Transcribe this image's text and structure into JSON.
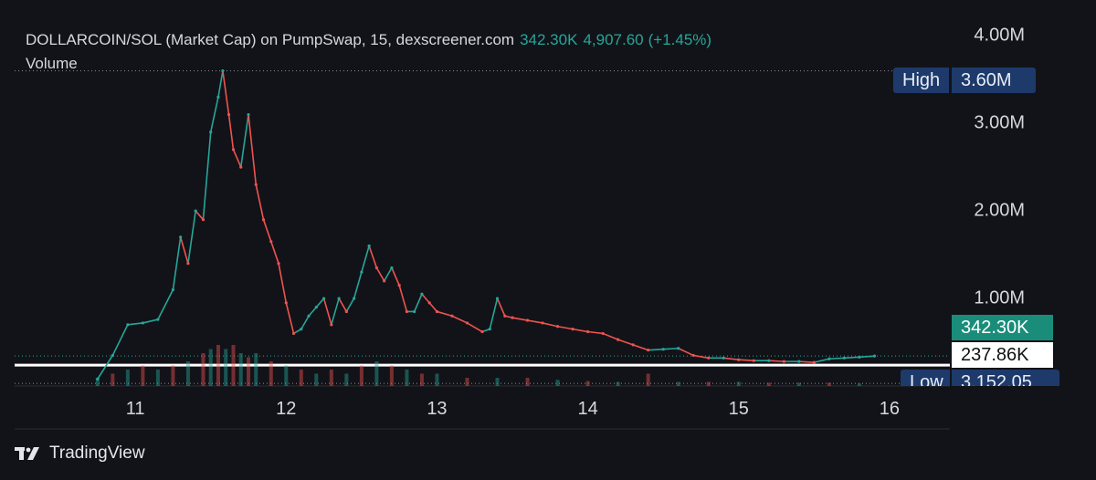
{
  "header": {
    "title": "DOLLARCOIN/SOL (Market Cap) on PumpSwap, 15, dexscreener.com",
    "last_value": "342.30K",
    "change_abs": "4,907.60",
    "change_pct": "(+1.45%)",
    "volume_label": "Volume"
  },
  "colors": {
    "background": "#121318",
    "up": "#26a69a",
    "down": "#ef5350",
    "label_box": "#1d3a6b"
  },
  "labels": {
    "high_name": "High",
    "high_value": "3.60M",
    "low_name": "Low",
    "low_value": "3,152.05",
    "current_value": "342.30K",
    "line_value": "237.86K"
  },
  "brand": {
    "name": "TradingView",
    "logo_icon": "tradingview-logo-icon"
  },
  "chart_data": {
    "type": "line",
    "title": "DOLLARCOIN/SOL (Market Cap) on PumpSwap, 15, dexscreener.com",
    "xlabel": "",
    "ylabel": "",
    "y_ticks": [
      "1.00M",
      "2.00M",
      "3.00M",
      "4.00M"
    ],
    "y_tick_values": [
      1000000,
      2000000,
      3000000,
      4000000
    ],
    "x_ticks": [
      "11",
      "12",
      "13",
      "14",
      "15",
      "16"
    ],
    "x_tick_values": [
      11,
      12,
      13,
      14,
      15,
      16
    ],
    "ylim": [
      0,
      4200000
    ],
    "xlim": [
      10.2,
      16.4
    ],
    "grid": false,
    "reference_lines": {
      "high": 3600000,
      "current": 342300,
      "drawn_line": 237860
    },
    "series": [
      {
        "x": [
          10.75,
          10.85,
          10.95,
          11.05,
          11.15,
          11.25,
          11.3,
          11.35,
          11.4,
          11.45,
          11.5,
          11.55,
          11.58,
          11.62,
          11.65,
          11.7,
          11.75,
          11.8,
          11.85,
          11.9,
          11.95,
          12.0,
          12.05,
          12.1,
          12.15,
          12.2,
          12.25,
          12.3,
          12.35,
          12.4,
          12.45,
          12.5,
          12.55,
          12.6,
          12.65,
          12.7,
          12.75,
          12.8,
          12.85,
          12.9,
          12.95,
          13.0,
          13.1,
          13.2,
          13.3,
          13.35,
          13.4,
          13.45,
          13.5,
          13.6,
          13.7,
          13.8,
          13.9,
          14.0,
          14.1,
          14.2,
          14.3,
          14.4,
          14.5,
          14.6,
          14.7,
          14.8,
          14.9,
          15.0,
          15.1,
          15.2,
          15.3,
          15.4,
          15.5,
          15.6,
          15.7,
          15.8,
          15.9
        ],
        "values": [
          80000,
          350000,
          700000,
          720000,
          760000,
          1100000,
          1700000,
          1400000,
          2000000,
          1900000,
          2900000,
          3300000,
          3600000,
          3100000,
          2700000,
          2500000,
          3100000,
          2300000,
          1900000,
          1650000,
          1400000,
          950000,
          600000,
          650000,
          800000,
          900000,
          1000000,
          700000,
          1000000,
          850000,
          1000000,
          1300000,
          1600000,
          1350000,
          1200000,
          1350000,
          1150000,
          850000,
          850000,
          1050000,
          950000,
          850000,
          800000,
          720000,
          620000,
          650000,
          1000000,
          800000,
          780000,
          750000,
          720000,
          680000,
          650000,
          620000,
          600000,
          530000,
          470000,
          410000,
          420000,
          430000,
          350000,
          320000,
          320000,
          300000,
          290000,
          290000,
          280000,
          280000,
          270000,
          310000,
          320000,
          330000,
          342300
        ]
      }
    ],
    "volume": {
      "x": [
        10.75,
        10.85,
        10.95,
        11.05,
        11.15,
        11.25,
        11.35,
        11.45,
        11.5,
        11.55,
        11.6,
        11.65,
        11.7,
        11.75,
        11.8,
        11.9,
        12.0,
        12.1,
        12.2,
        12.3,
        12.4,
        12.5,
        12.6,
        12.7,
        12.8,
        12.9,
        13.0,
        13.2,
        13.4,
        13.6,
        13.8,
        14.0,
        14.2,
        14.4,
        14.6,
        14.8,
        15.0,
        15.2,
        15.4,
        15.6,
        15.8
      ],
      "values": [
        2,
        3,
        4,
        5,
        4,
        5,
        6,
        8,
        9,
        10,
        9,
        10,
        8,
        7,
        8,
        6,
        5,
        4,
        3,
        4,
        3,
        5,
        6,
        5,
        4,
        3,
        3,
        2,
        2,
        2,
        1.5,
        1.2,
        1,
        3,
        1,
        1,
        1,
        0.8,
        0.8,
        0.8,
        0.6
      ]
    }
  }
}
